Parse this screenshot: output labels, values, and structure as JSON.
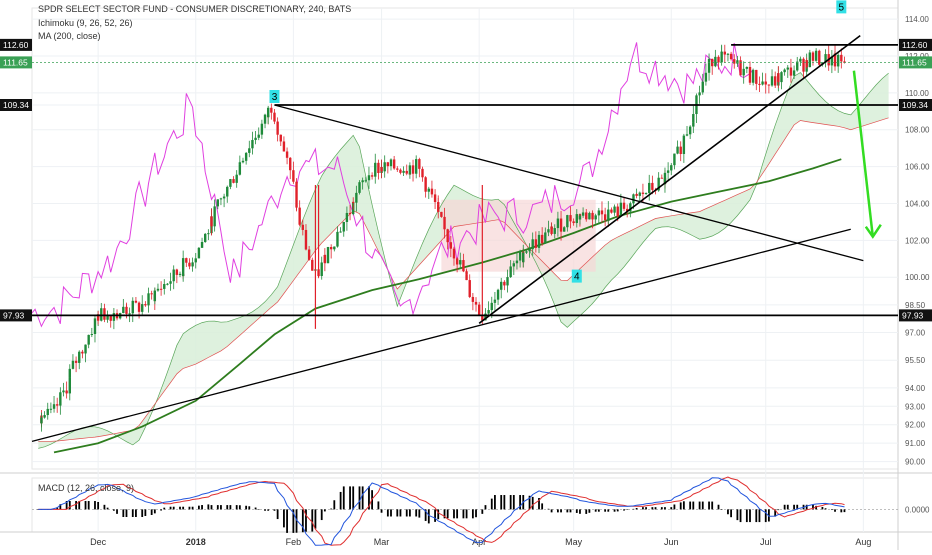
{
  "header": {
    "title": "SPDR SELECT SECTOR FUND - CONSUMER DISCRETIONARY, 240, BATS",
    "ichimoku": "Ichimoku (9, 26, 52, 26)",
    "ma": "MA (200, close)",
    "macd": "MACD (12, 26, close, 9)"
  },
  "colors": {
    "up": "#1f8a3a",
    "down": "#e0202a",
    "ichimoku_line": "#e040e0",
    "ma200": "#2e7d1e",
    "cloud_bull": "#d8efd8",
    "cloud_bear": "#f7d7d7",
    "macd_line": "#2255dd",
    "signal_line": "#e03030",
    "wave_label_bg": "#31e0e6",
    "projection_arrow": "#33dd22"
  },
  "price_axis": {
    "ticks": [
      "114.00",
      "112.00",
      "110.00",
      "109.34",
      "108.00",
      "106.00",
      "104.00",
      "102.00",
      "100.00",
      "98.50",
      "97.00",
      "95.50",
      "94.00",
      "93.00",
      "92.00",
      "91.00",
      "90.00"
    ],
    "ylim": [
      89.6,
      114.6
    ]
  },
  "price_badges": [
    {
      "label": "112.60",
      "value": 112.6,
      "color": "#111111"
    },
    {
      "label": "111.65",
      "value": 111.65,
      "color": "#3aa055"
    },
    {
      "label": "109.34",
      "value": 109.34,
      "color": "#111111"
    },
    {
      "label": "97.93",
      "value": 97.93,
      "color": "#111111"
    }
  ],
  "time_axis": {
    "labels": [
      "Dec",
      "2018",
      "Feb",
      "Mar",
      "Apr",
      "May",
      "Jun",
      "Jul",
      "Aug"
    ],
    "bold": [
      "2018"
    ]
  },
  "macd_axis": {
    "label": "0.0000"
  },
  "waves": [
    {
      "label": "3",
      "x": "2018-01-26",
      "y": 109.34
    },
    {
      "label": "4",
      "x": "2018-05-02",
      "y": 99.6
    },
    {
      "label": "5",
      "x": "2018-07-25",
      "y": 114.2
    }
  ],
  "chart_data": {
    "type": "line",
    "x": [
      "2017-11-17",
      "2017-12-01",
      "2017-12-15",
      "2018-01-01",
      "2018-01-15",
      "2018-01-26",
      "2018-02-08",
      "2018-02-26",
      "2018-03-13",
      "2018-04-02",
      "2018-04-16",
      "2018-05-01",
      "2018-05-15",
      "2018-06-01",
      "2018-06-15",
      "2018-07-02",
      "2018-07-16",
      "2018-07-25"
    ],
    "series": [
      {
        "name": "Close",
        "values": [
          92.5,
          97.9,
          98.4,
          101.1,
          106.1,
          109.34,
          99.9,
          105.9,
          106.0,
          97.9,
          101.5,
          103.3,
          103.5,
          105.5,
          112.2,
          110.4,
          111.9,
          111.65
        ]
      },
      {
        "name": "MA (200, close)",
        "values": [
          90.5,
          91.0,
          91.9,
          93.3,
          95.3,
          96.9,
          98.3,
          99.3,
          99.9,
          100.8,
          101.5,
          102.4,
          103.3,
          104.1,
          104.6,
          105.2,
          105.9,
          106.4
        ]
      }
    ],
    "horizontal_levels": [
      112.6,
      109.34,
      97.93
    ],
    "ylim": [
      89.6,
      114.6
    ],
    "grid": true
  },
  "macd": {
    "ylim": [
      -0.9,
      1.25
    ],
    "zero_label": "0.0000"
  }
}
